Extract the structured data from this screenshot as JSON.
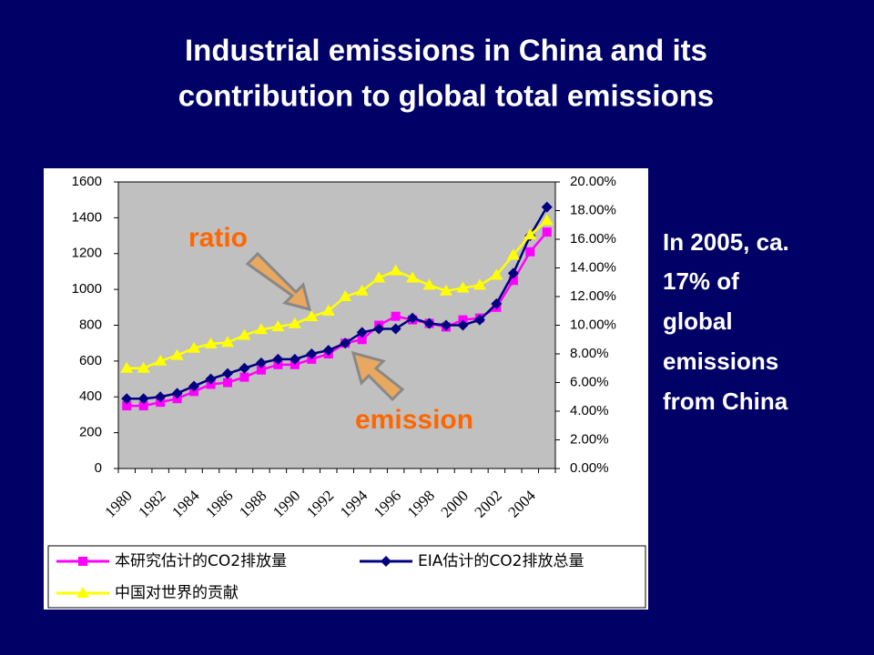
{
  "slide": {
    "title": [
      "Industrial emissions in China and its",
      "contribution to global total emissions"
    ],
    "side_text": [
      "In 2005, ca.",
      "17% of",
      "global",
      "emissions",
      "from China"
    ]
  },
  "chart_data": {
    "type": "line",
    "categories": [
      "1980",
      null,
      "1982",
      null,
      "1984",
      null,
      "1986",
      null,
      "1988",
      null,
      "1990",
      null,
      "1992",
      null,
      "1994",
      null,
      "1996",
      null,
      "1998",
      null,
      "2000",
      null,
      "2002",
      null,
      "2004",
      null
    ],
    "series": [
      {
        "name": "本研究估计的CO2排放量",
        "color": "#ff00ff",
        "marker": "square",
        "values": [
          350,
          350,
          370,
          390,
          430,
          470,
          480,
          510,
          550,
          580,
          580,
          610,
          640,
          700,
          720,
          800,
          850,
          830,
          810,
          790,
          830,
          840,
          900,
          1050,
          1210,
          1320
        ]
      },
      {
        "name": "EIA估计的CO2排放总量",
        "color": "#000080",
        "marker": "diamond",
        "values": [
          390,
          390,
          400,
          420,
          460,
          500,
          530,
          560,
          590,
          610,
          610,
          640,
          660,
          700,
          760,
          780,
          780,
          840,
          810,
          800,
          800,
          830,
          920,
          1090,
          1300,
          1460
        ]
      },
      {
        "name": "中国对世界的贡献",
        "color": "#ffff00",
        "marker": "triangle",
        "axis": "y2",
        "values": [
          7.0,
          7.0,
          7.5,
          7.9,
          8.4,
          8.7,
          8.8,
          9.3,
          9.7,
          9.9,
          10.1,
          10.6,
          11.0,
          12.0,
          12.4,
          13.3,
          13.8,
          13.3,
          12.8,
          12.4,
          12.6,
          12.8,
          13.5,
          14.9,
          16.3,
          17.3
        ]
      }
    ],
    "ylim": [
      0,
      1600
    ],
    "yticks": [
      0,
      200,
      400,
      600,
      800,
      1000,
      1200,
      1400,
      1600
    ],
    "y2lim": [
      0,
      20
    ],
    "y2ticks": [
      {
        "value": 0,
        "label": "0.00%"
      },
      {
        "value": 2,
        "label": "2.00%"
      },
      {
        "value": 4,
        "label": "4.00%"
      },
      {
        "value": 6,
        "label": "6.00%"
      },
      {
        "value": 8,
        "label": "8.00%"
      },
      {
        "value": 10,
        "label": "10.00%"
      },
      {
        "value": 12,
        "label": "12.00%"
      },
      {
        "value": 14,
        "label": "14.00%"
      },
      {
        "value": 16,
        "label": "16.00%"
      },
      {
        "value": 18,
        "label": "18.00%"
      },
      {
        "value": 20,
        "label": "20.00%"
      }
    ],
    "annotations": [
      "ratio",
      "emission"
    ],
    "plot_background": "#c0c0c0"
  }
}
